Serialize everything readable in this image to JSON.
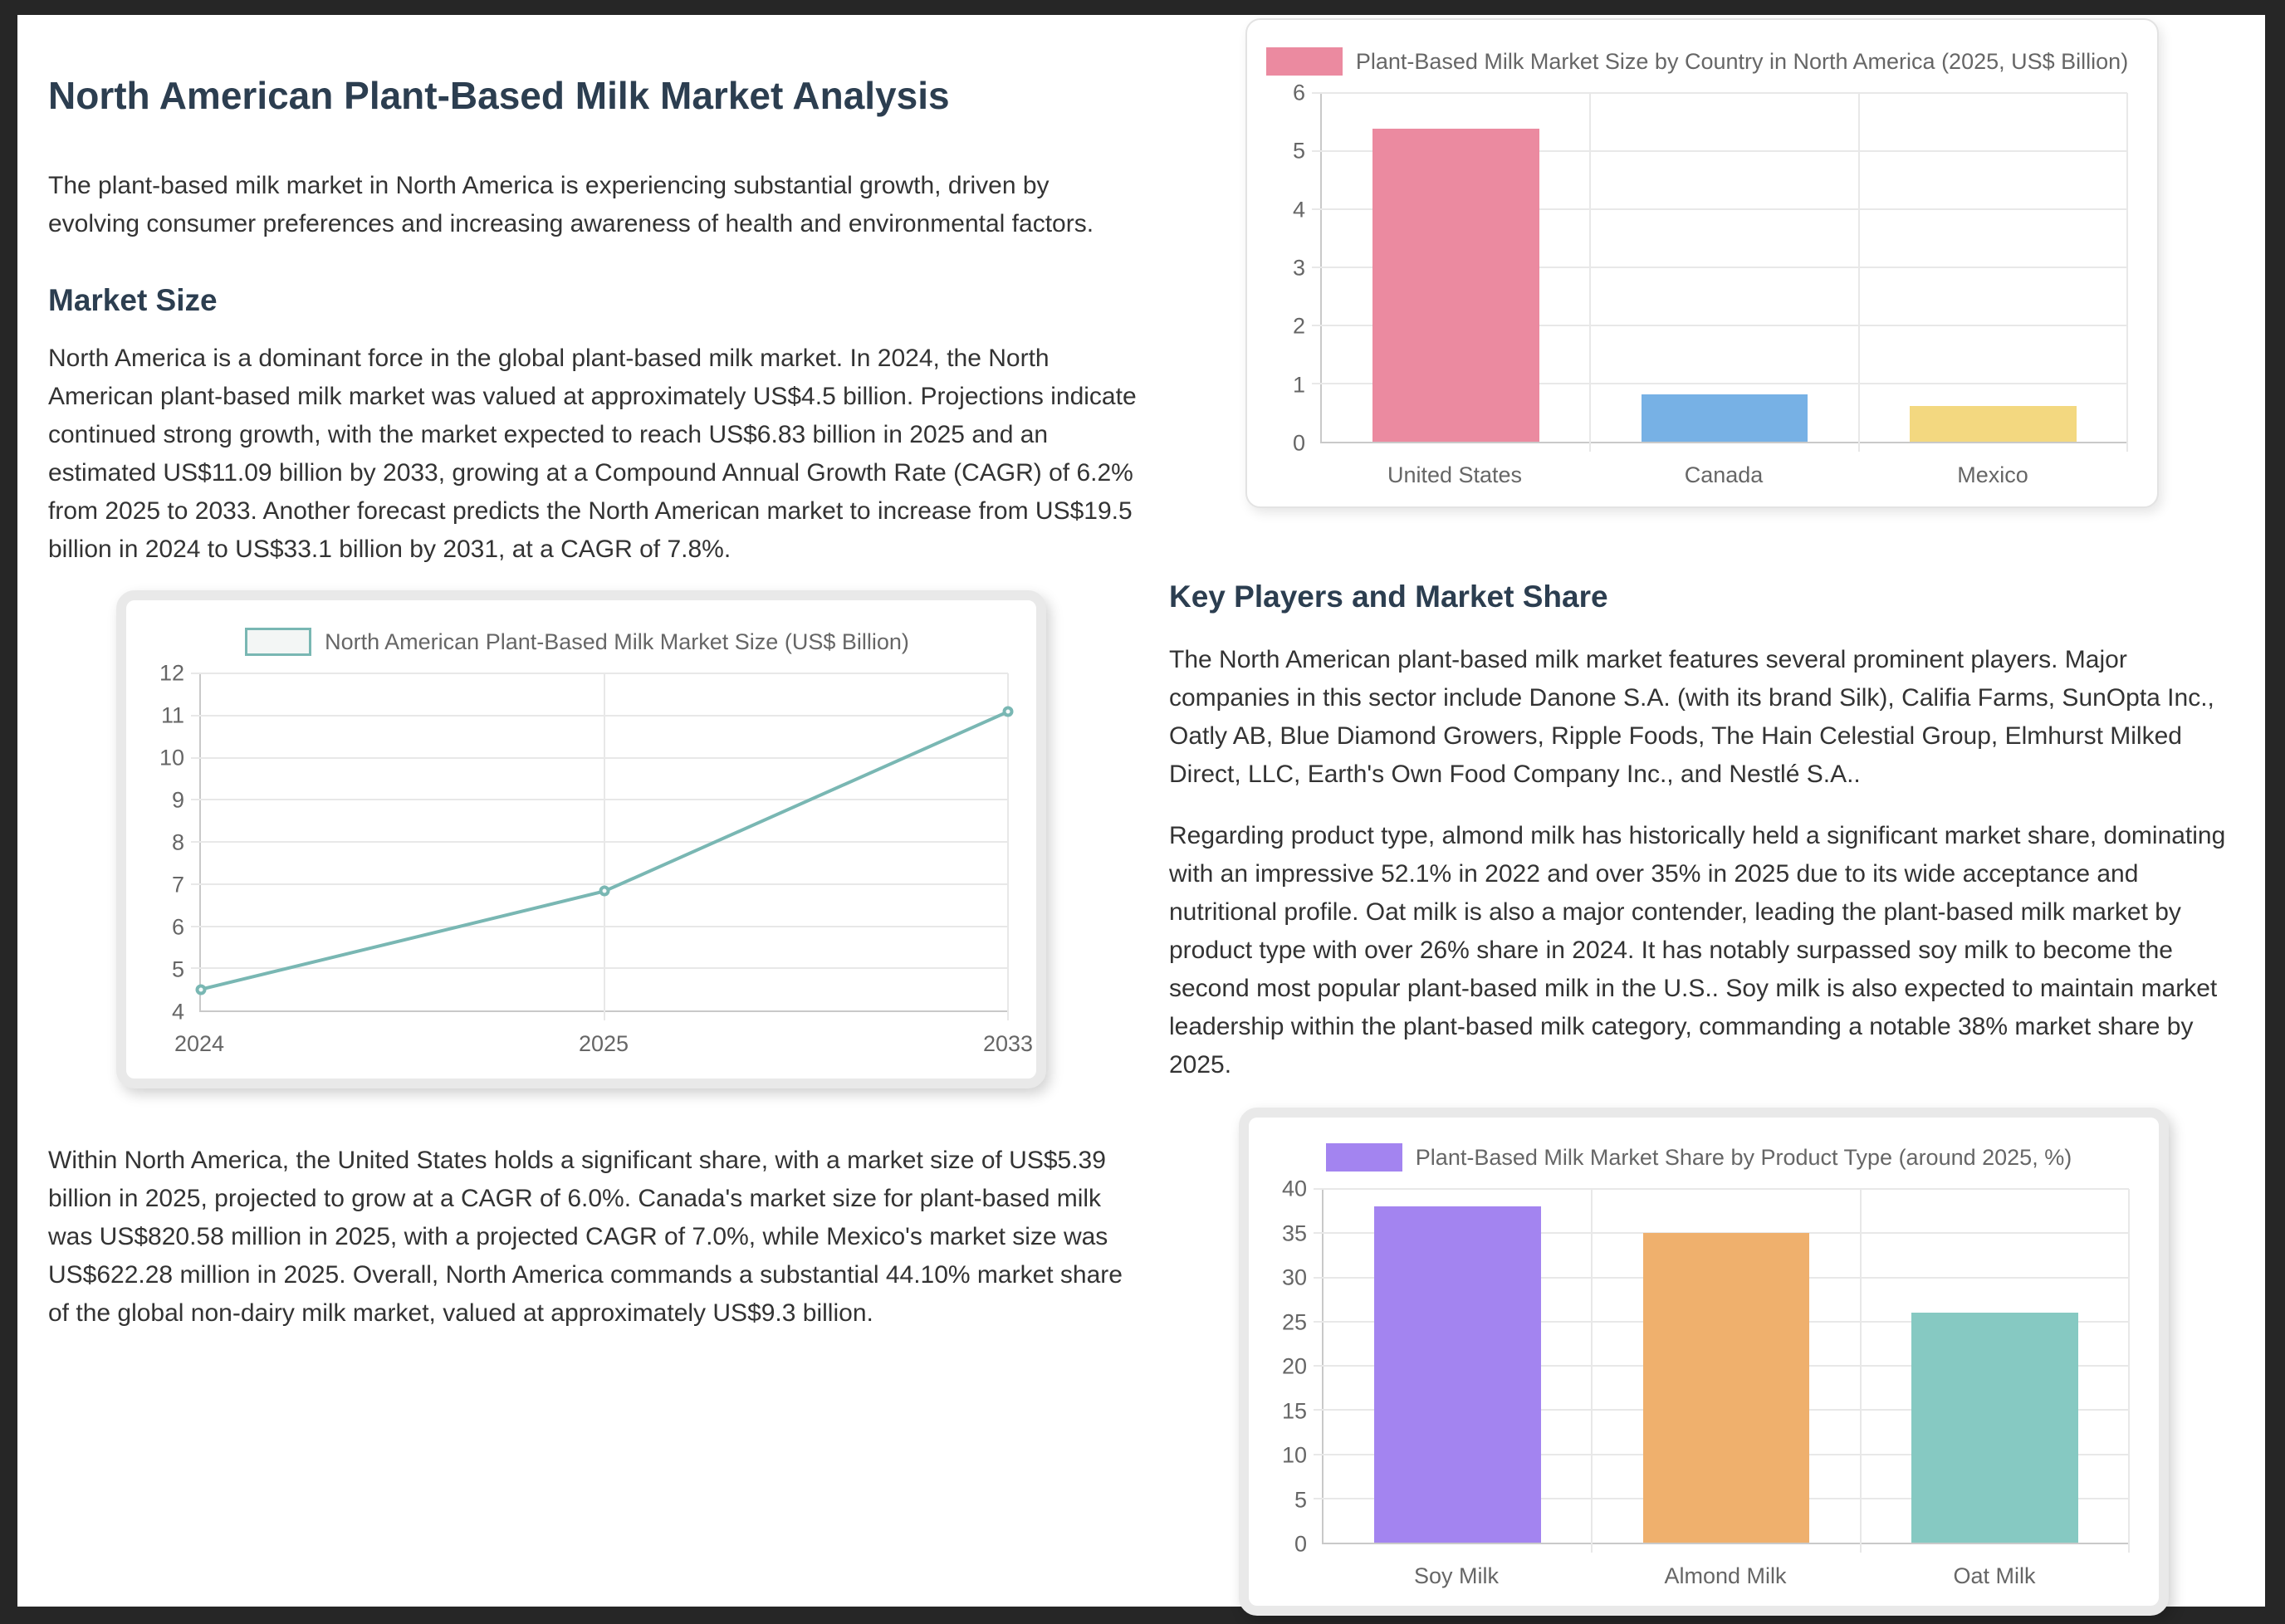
{
  "doc": {
    "title": "North American Plant-Based Milk Market Analysis",
    "intro": "The plant-based milk market in North America is experiencing substantial growth, driven by evolving consumer preferences and increasing awareness of health and environmental factors.",
    "market_size": {
      "heading": "Market Size",
      "para1": "North America is a dominant force in the global plant-based milk market. In 2024, the North American plant-based milk market was valued at approximately US$4.5 billion. Projections indicate continued strong growth, with the market expected to reach US$6.83 billion in 2025 and an estimated US$11.09 billion by 2033, growing at a Compound Annual Growth Rate (CAGR) of 6.2% from 2025 to 2033. Another forecast predicts the North American market to increase from US$19.5 billion in 2024 to US$33.1 billion by 2031, at a CAGR of 7.8%.",
      "para2": "Within North America, the United States holds a significant share, with a market size of US$5.39 billion in 2025, projected to grow at a CAGR of 6.0%. Canada's market size for plant-based milk was US$820.58 million in 2025, with a projected CAGR of 7.0%, while Mexico's market size was US$622.28 million in 2025. Overall, North America commands a substantial 44.10% market share of the global non-dairy milk market, valued at approximately US$9.3 billion."
    },
    "key_players": {
      "heading": "Key Players and Market Share",
      "para1": "The North American plant-based milk market features several prominent players. Major companies in this sector include Danone S.A. (with its brand Silk), Califia Farms, SunOpta Inc., Oatly AB, Blue Diamond Growers, Ripple Foods, The Hain Celestial Group, Elmhurst Milked Direct, LLC, Earth's Own Food Company Inc., and Nestlé S.A..",
      "para2": "Regarding product type, almond milk has historically held a significant market share, dominating with an impressive 52.1% in 2022 and over 35% in 2025 due to its wide acceptance and nutritional profile. Oat milk is also a major contender, leading the plant-based milk market by product type with over 26% share in 2024. It has notably surpassed soy milk to become the second most popular plant-based milk in the U.S.. Soy milk is also expected to maintain market leadership within the plant-based milk category, commanding a notable 38% market share by 2025."
    }
  },
  "chart_data": [
    {
      "id": "line-market-size",
      "type": "line",
      "title": "North American Plant-Based Milk Market Size (US$ Billion)",
      "categories": [
        "2024",
        "2025",
        "2033"
      ],
      "values": [
        4.5,
        6.83,
        11.09
      ],
      "ylim": [
        4,
        12
      ],
      "ytick_step": 1,
      "grid": true,
      "legend_position": "top",
      "colors": {
        "line": "#79b7b3",
        "legend_fill": "#f3f6f5"
      }
    },
    {
      "id": "bar-country",
      "type": "bar",
      "title": "Plant-Based Milk Market Size by Country in North America (2025, US$ Billion)",
      "categories": [
        "United States",
        "Canada",
        "Mexico"
      ],
      "values": [
        5.39,
        0.82,
        0.62
      ],
      "bar_colors": [
        "#eb8aa0",
        "#77b1e5",
        "#f3d880"
      ],
      "legend_color": "#eb8aa0",
      "ylim": [
        0,
        6
      ],
      "ytick_step": 1,
      "grid": true,
      "legend_position": "top"
    },
    {
      "id": "bar-product",
      "type": "bar",
      "title": "Plant-Based Milk Market Share by Product Type (around 2025, %)",
      "categories": [
        "Soy Milk",
        "Almond Milk",
        "Oat Milk"
      ],
      "values": [
        38,
        35,
        26
      ],
      "bar_colors": [
        "#a384f0",
        "#efb06d",
        "#86c9c2"
      ],
      "legend_color": "#a384f0",
      "ylim": [
        0,
        40
      ],
      "ytick_step": 5,
      "grid": true,
      "legend_position": "top"
    }
  ]
}
